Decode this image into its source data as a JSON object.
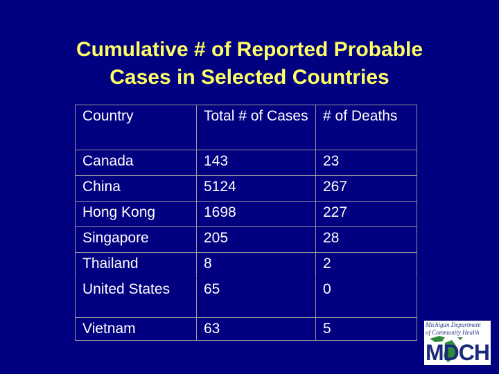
{
  "slide": {
    "title_line1": "Cumulative # of Reported Probable",
    "title_line2": "Cases in Selected Countries"
  },
  "table": {
    "headers": [
      "Country",
      "Total # of Cases",
      "# of Deaths"
    ],
    "rows": [
      {
        "country": "Canada",
        "cases": "143",
        "deaths": "23"
      },
      {
        "country": "China",
        "cases": "5124",
        "deaths": "267"
      },
      {
        "country": "Hong Kong",
        "cases": "1698",
        "deaths": "227"
      },
      {
        "country": "Singapore",
        "cases": "205",
        "deaths": "28"
      },
      {
        "country": "Thailand",
        "cases": "8",
        "deaths": "2"
      },
      {
        "country": "United States",
        "cases": "65",
        "deaths": "0"
      },
      {
        "country": "Vietnam",
        "cases": "63",
        "deaths": "5"
      }
    ]
  },
  "logo": {
    "line1": "Michigan Department",
    "line2": "of Community Health",
    "wordmark": "MDCH"
  },
  "colors": {
    "background": "#000080",
    "title": "#ffff66",
    "text": "#ffffff"
  }
}
